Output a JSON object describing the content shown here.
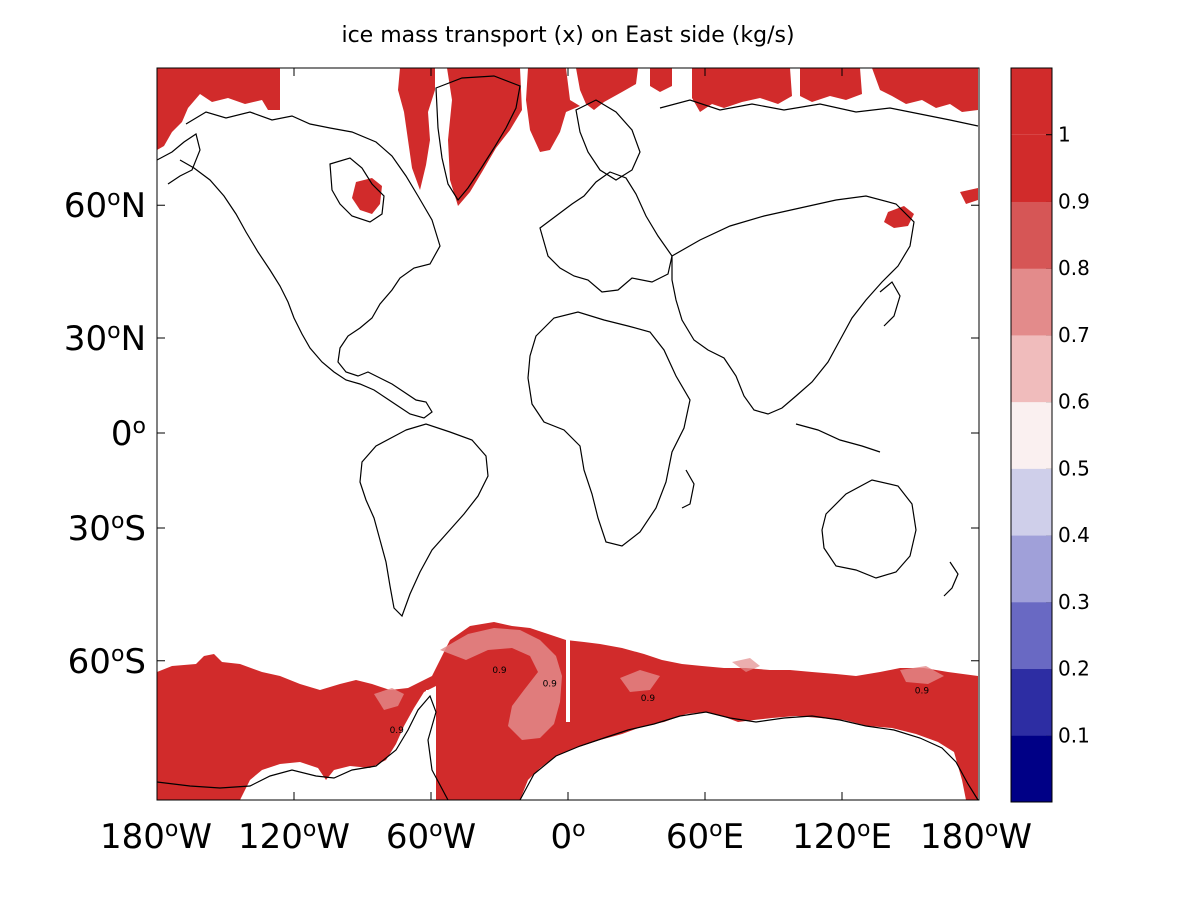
{
  "title": "ice mass transport (x) on East side (kg/s)",
  "lat_ticks": [
    {
      "label": "60°N",
      "lat": 60
    },
    {
      "label": "30°N",
      "lat": 30
    },
    {
      "label": "0°",
      "lat": 0
    },
    {
      "label": "30°S",
      "lat": -30
    },
    {
      "label": "60°S",
      "lat": -60
    }
  ],
  "lon_ticks": [
    {
      "label": "180°W",
      "lon": -180
    },
    {
      "label": "120°W",
      "lon": -120
    },
    {
      "label": "60°W",
      "lon": -60
    },
    {
      "label": "0°",
      "lon": 0
    },
    {
      "label": "60°E",
      "lon": 60
    },
    {
      "label": "120°E",
      "lon": 120
    },
    {
      "label": "180°W",
      "lon": 180
    }
  ],
  "colorbar": {
    "levels": [
      {
        "label": "0.1",
        "color": "#000086"
      },
      {
        "label": "0.2",
        "color": "#2d2da3"
      },
      {
        "label": "0.3",
        "color": "#6969c3"
      },
      {
        "label": "0.4",
        "color": "#a0a0d9"
      },
      {
        "label": "0.5",
        "color": "#cfcfea"
      },
      {
        "label": "0.6",
        "color": "#faf0f0"
      },
      {
        "label": "0.7",
        "color": "#f0bcbc"
      },
      {
        "label": "0.8",
        "color": "#e38b8b"
      },
      {
        "label": "0.9",
        "color": "#d65656"
      },
      {
        "label": "1",
        "color": "#d12b2b"
      }
    ],
    "top_color": "#d12b2b"
  },
  "contour_labels": [
    {
      "text": "0.9",
      "lon": -30,
      "lat": -62
    },
    {
      "text": "0.9",
      "lon": -8,
      "lat": -64
    },
    {
      "text": "0.9",
      "lon": 35,
      "lat": -66
    },
    {
      "text": "0.9",
      "lon": 155,
      "lat": -65
    },
    {
      "text": "0.9",
      "lon": -75,
      "lat": -70
    }
  ],
  "colors": {
    "ice": "#d12b2b",
    "ice_light": "#e38b8b",
    "coast": "#000000"
  }
}
